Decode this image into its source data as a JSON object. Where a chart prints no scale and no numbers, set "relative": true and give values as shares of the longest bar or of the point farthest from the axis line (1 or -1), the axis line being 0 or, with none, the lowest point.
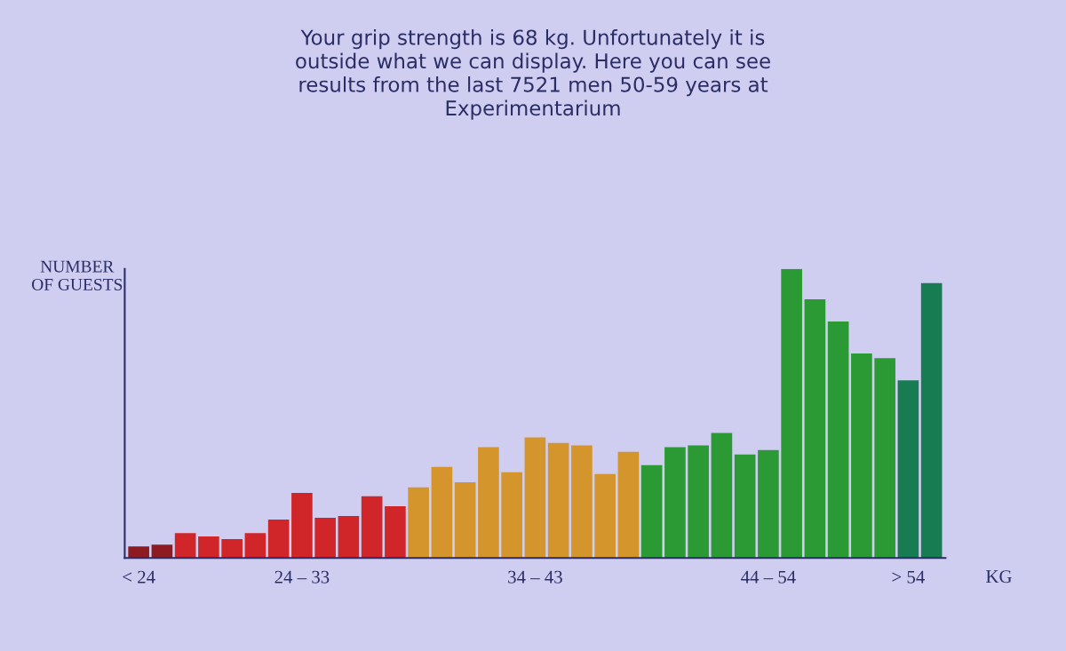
{
  "chart_data": {
    "type": "bar",
    "title": "Your grip strength is 68 kg. Unfortunately it is\noutside what we can display. Here you can see\nresults from the last 7521 men 50-59 years at\nExperimentarium",
    "ylabel": "NUMBER\nOF GUESTS",
    "xlabel": "KG",
    "relative": true,
    "grid": false,
    "legend": false,
    "categories": [
      "< 24",
      null,
      null,
      null,
      null,
      null,
      null,
      "24 – 33",
      null,
      null,
      null,
      null,
      null,
      null,
      null,
      null,
      null,
      "34 – 43",
      null,
      null,
      null,
      null,
      null,
      null,
      null,
      null,
      null,
      "44 – 54",
      null,
      null,
      null,
      null,
      null,
      "> 54",
      null
    ],
    "values": [
      0.04,
      0.046,
      0.086,
      0.074,
      0.065,
      0.086,
      0.133,
      0.225,
      0.139,
      0.145,
      0.213,
      0.179,
      0.244,
      0.315,
      0.262,
      0.383,
      0.296,
      0.417,
      0.398,
      0.389,
      0.29,
      0.367,
      0.321,
      0.383,
      0.389,
      0.432,
      0.358,
      0.373,
      1,
      0.895,
      0.818,
      0.707,
      0.691,
      0.614,
      0.951
    ],
    "colors": [
      "#8c1c22",
      "#8c1c22",
      "#d0262a",
      "#d0262a",
      "#d0262a",
      "#d0262a",
      "#d0262a",
      "#d0262a",
      "#d0262a",
      "#d0262a",
      "#d0262a",
      "#d0262a",
      "#d4952c",
      "#d4952c",
      "#d4952c",
      "#d4952c",
      "#d4952c",
      "#d4952c",
      "#d4952c",
      "#d4952c",
      "#d4952c",
      "#d4952c",
      "#2c9a34",
      "#2c9a34",
      "#2c9a34",
      "#2c9a34",
      "#2c9a34",
      "#2c9a34",
      "#2c9a34",
      "#2c9a34",
      "#2c9a34",
      "#2c9a34",
      "#2c9a34",
      "#177c52",
      "#177c52"
    ]
  }
}
